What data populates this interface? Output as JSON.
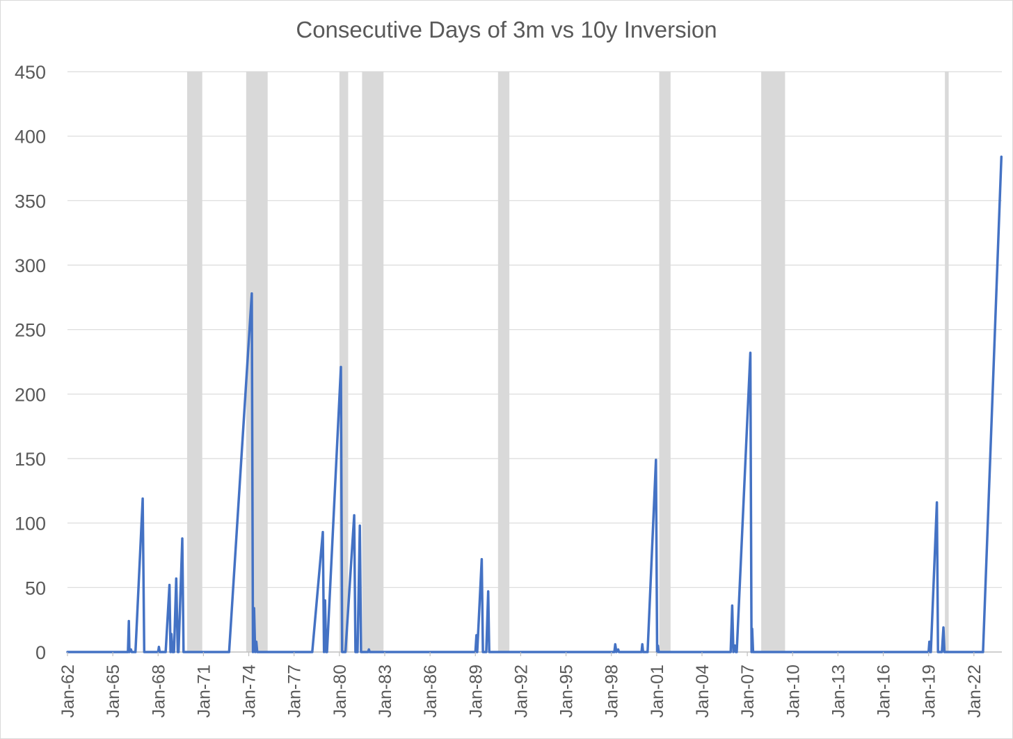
{
  "chart_data": {
    "type": "line",
    "title": "Consecutive Days of 3m vs 10y Inversion",
    "xlabel": "",
    "ylabel": "",
    "ylim": [
      0,
      450
    ],
    "yticks": [
      "0",
      "50",
      "100",
      "150",
      "200",
      "250",
      "300",
      "350",
      "400",
      "450"
    ],
    "xlim": [
      1962.0,
      2023.85
    ],
    "xticks": [
      {
        "label": "Jan-62",
        "x": 1962
      },
      {
        "label": "Jan-65",
        "x": 1965
      },
      {
        "label": "Jan-68",
        "x": 1968
      },
      {
        "label": "Jan-71",
        "x": 1971
      },
      {
        "label": "Jan-74",
        "x": 1974
      },
      {
        "label": "Jan-77",
        "x": 1977
      },
      {
        "label": "Jan-80",
        "x": 1980
      },
      {
        "label": "Jan-83",
        "x": 1983
      },
      {
        "label": "Jan-86",
        "x": 1986
      },
      {
        "label": "Jan-89",
        "x": 1989
      },
      {
        "label": "Jan-92",
        "x": 1992
      },
      {
        "label": "Jan-95",
        "x": 1995
      },
      {
        "label": "Jan-98",
        "x": 1998
      },
      {
        "label": "Jan-01",
        "x": 2001
      },
      {
        "label": "Jan-04",
        "x": 2004
      },
      {
        "label": "Jan-07",
        "x": 2007
      },
      {
        "label": "Jan-10",
        "x": 2010
      },
      {
        "label": "Jan-13",
        "x": 2013
      },
      {
        "label": "Jan-16",
        "x": 2016
      },
      {
        "label": "Jan-19",
        "x": 2019
      },
      {
        "label": "Jan-22",
        "x": 2022
      }
    ],
    "grid": true,
    "colors": {
      "line": "#4472C4",
      "recession": "#D9D9D9",
      "grid": "#D9D9D9",
      "text": "#595959"
    },
    "recession_shading": [
      {
        "start": 1969.92,
        "end": 1970.92
      },
      {
        "start": 1973.83,
        "end": 1975.25
      },
      {
        "start": 1980.0,
        "end": 1980.58
      },
      {
        "start": 1981.5,
        "end": 1982.92
      },
      {
        "start": 1990.5,
        "end": 1991.25
      },
      {
        "start": 2001.17,
        "end": 2001.92
      },
      {
        "start": 2007.92,
        "end": 2009.5
      },
      {
        "start": 2020.08,
        "end": 2020.33
      }
    ],
    "series": [
      {
        "values": [
          [
            1962.0,
            0
          ],
          [
            1966.0,
            0
          ],
          [
            1966.06,
            24
          ],
          [
            1966.1,
            0
          ],
          [
            1966.2,
            2
          ],
          [
            1966.25,
            0
          ],
          [
            1966.5,
            0
          ],
          [
            1966.98,
            119
          ],
          [
            1967.08,
            0
          ],
          [
            1968.0,
            0
          ],
          [
            1968.05,
            4
          ],
          [
            1968.1,
            0
          ],
          [
            1968.5,
            0
          ],
          [
            1968.75,
            52
          ],
          [
            1968.82,
            0
          ],
          [
            1968.88,
            14
          ],
          [
            1968.95,
            0
          ],
          [
            1969.05,
            0
          ],
          [
            1969.2,
            57
          ],
          [
            1969.3,
            0
          ],
          [
            1969.35,
            0
          ],
          [
            1969.6,
            88
          ],
          [
            1969.68,
            0
          ],
          [
            1972.7,
            0
          ],
          [
            1974.2,
            278
          ],
          [
            1974.28,
            0
          ],
          [
            1974.35,
            34
          ],
          [
            1974.42,
            0
          ],
          [
            1974.5,
            8
          ],
          [
            1974.56,
            0
          ],
          [
            1978.2,
            0
          ],
          [
            1978.9,
            93
          ],
          [
            1978.98,
            0
          ],
          [
            1979.05,
            40
          ],
          [
            1979.12,
            0
          ],
          [
            1979.18,
            0
          ],
          [
            1980.1,
            221
          ],
          [
            1980.18,
            0
          ],
          [
            1980.4,
            0
          ],
          [
            1980.98,
            106
          ],
          [
            1981.06,
            0
          ],
          [
            1981.2,
            0
          ],
          [
            1981.35,
            98
          ],
          [
            1981.43,
            0
          ],
          [
            1981.9,
            0
          ],
          [
            1981.95,
            2
          ],
          [
            1982.0,
            0
          ],
          [
            1989.0,
            0
          ],
          [
            1989.07,
            13
          ],
          [
            1989.12,
            0
          ],
          [
            1989.42,
            72
          ],
          [
            1989.5,
            0
          ],
          [
            1989.72,
            0
          ],
          [
            1989.85,
            47
          ],
          [
            1989.92,
            0
          ],
          [
            1998.2,
            0
          ],
          [
            1998.26,
            6
          ],
          [
            1998.33,
            0
          ],
          [
            1998.45,
            2
          ],
          [
            1998.5,
            0
          ],
          [
            2000.0,
            0
          ],
          [
            2000.05,
            6
          ],
          [
            2000.1,
            0
          ],
          [
            2000.4,
            0
          ],
          [
            2000.95,
            149
          ],
          [
            2001.03,
            0
          ],
          [
            2001.08,
            5
          ],
          [
            2001.13,
            0
          ],
          [
            2005.9,
            0
          ],
          [
            2006.0,
            36
          ],
          [
            2006.08,
            0
          ],
          [
            2006.18,
            5
          ],
          [
            2006.24,
            0
          ],
          [
            2006.3,
            0
          ],
          [
            2007.2,
            232
          ],
          [
            2007.28,
            0
          ],
          [
            2007.32,
            18
          ],
          [
            2007.38,
            0
          ],
          [
            2019.0,
            0
          ],
          [
            2019.05,
            8
          ],
          [
            2019.1,
            0
          ],
          [
            2019.15,
            0
          ],
          [
            2019.55,
            116
          ],
          [
            2019.62,
            0
          ],
          [
            2019.88,
            0
          ],
          [
            2019.98,
            19
          ],
          [
            2020.05,
            0
          ],
          [
            2022.6,
            0
          ],
          [
            2023.82,
            384
          ]
        ]
      }
    ]
  }
}
